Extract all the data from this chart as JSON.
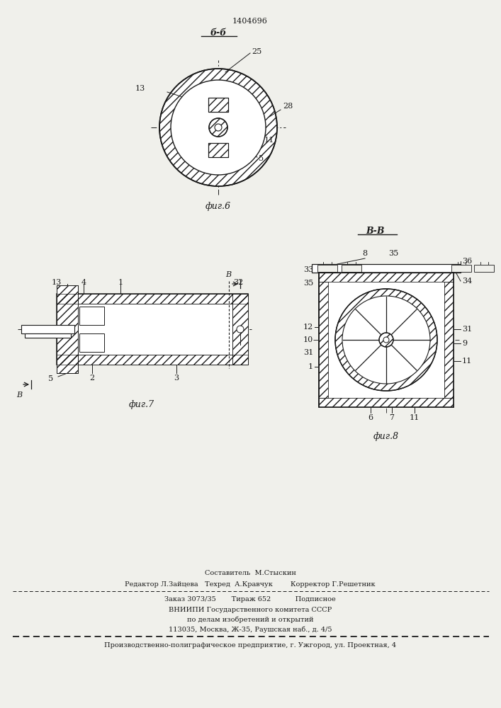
{
  "patent_number": "1404696",
  "bg_color": "#f0f0eb",
  "line_color": "#1a1a1a",
  "fig6_label": "б-б",
  "fig6_caption": "фиг.6",
  "fig7_caption": "фиг.7",
  "fig8_caption": "фиг.8",
  "fig8_label": "В-В",
  "footer_line1": "Составитель  М.Стыскин",
  "footer_line2": "Редактор Л.Зайцева   Техред  А.Кравчук        Корректор Г.Решетник",
  "footer_line3": "Заказ 3073/35       Тираж 652           Подписное",
  "footer_line4": "ВНИИПИ Государственного комитета СССР",
  "footer_line5": "по делам изобретений и открытий",
  "footer_line6": "113035, Москва, Ж-35, Раушская наб., д. 4/5",
  "footer_line7": "Производственно-полиграфическое предприятие, г. Ужгород, ул. Проектная, 4"
}
